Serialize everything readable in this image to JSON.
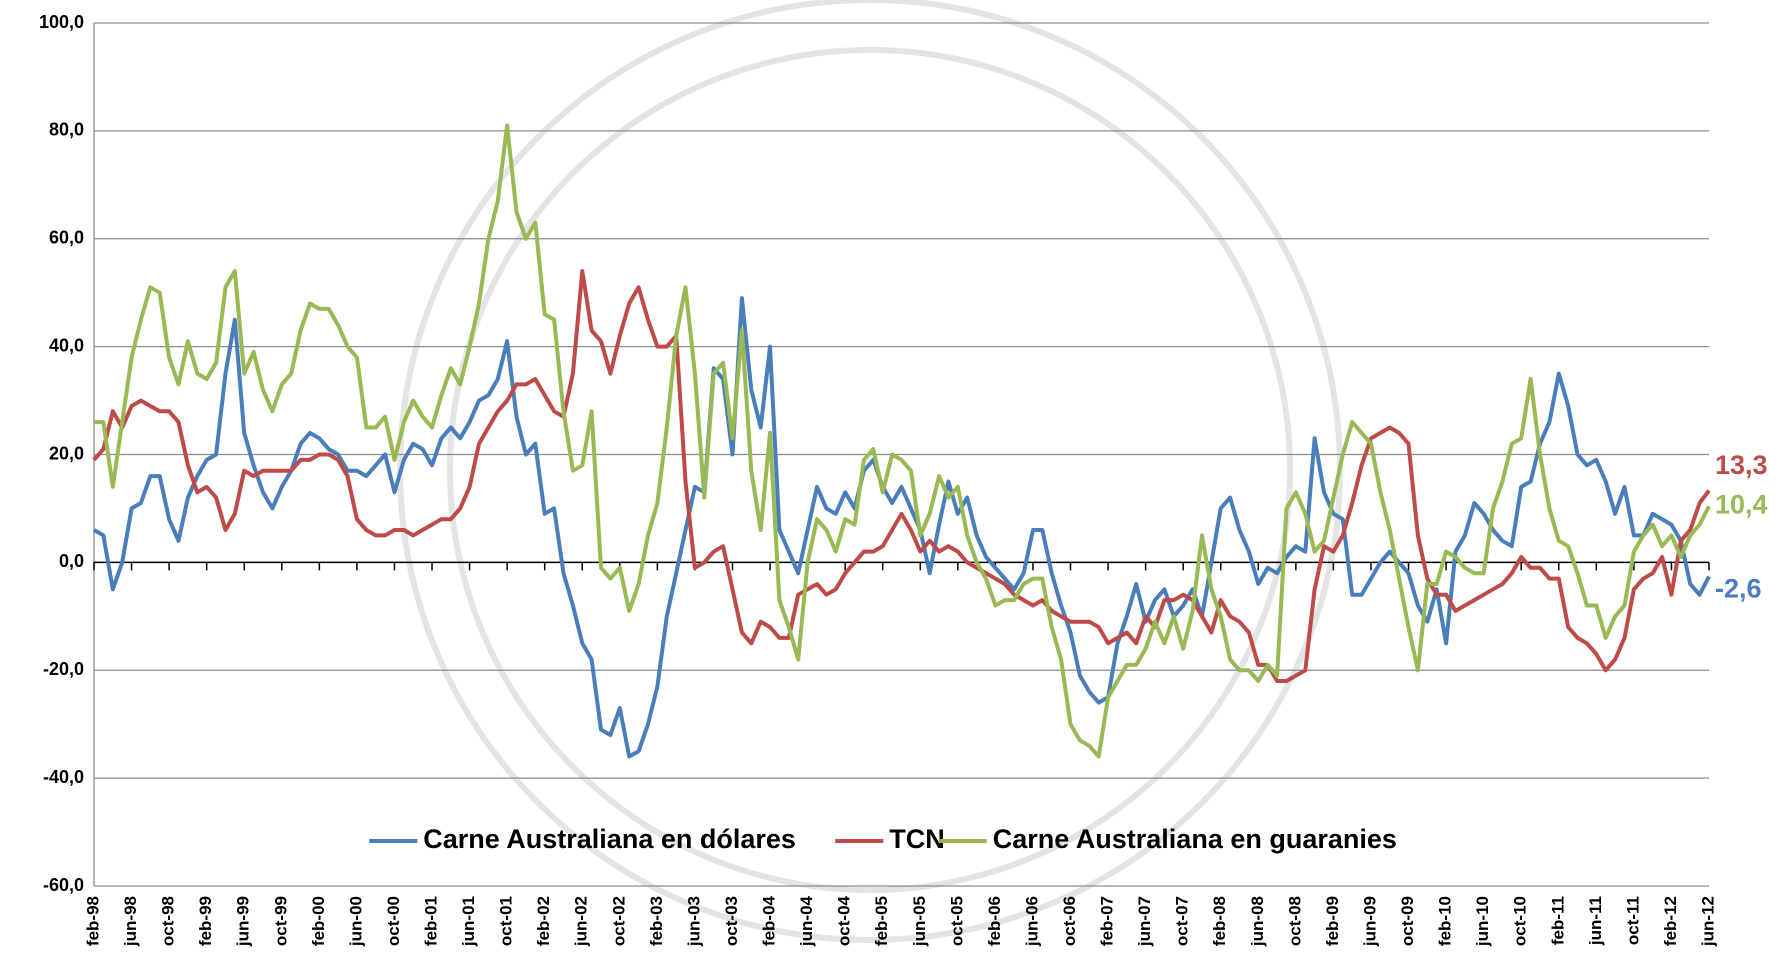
{
  "chart_data": {
    "type": "line",
    "categories": [
      "feb-98",
      null,
      null,
      null,
      "jun-98",
      null,
      null,
      null,
      "oct-98",
      null,
      null,
      null,
      "feb-99",
      null,
      null,
      null,
      "jun-99",
      null,
      null,
      null,
      "oct-99",
      null,
      null,
      null,
      "feb-00",
      null,
      null,
      null,
      "jun-00",
      null,
      null,
      null,
      "oct-00",
      null,
      null,
      null,
      "feb-01",
      null,
      null,
      null,
      "jun-01",
      null,
      null,
      null,
      "oct-01",
      null,
      null,
      null,
      "feb-02",
      null,
      null,
      null,
      "jun-02",
      null,
      null,
      null,
      "oct-02",
      null,
      null,
      null,
      "feb-03",
      null,
      null,
      null,
      "jun-03",
      null,
      null,
      null,
      "oct-03",
      null,
      null,
      null,
      "feb-04",
      null,
      null,
      null,
      "jun-04",
      null,
      null,
      null,
      "oct-04",
      null,
      null,
      null,
      "feb-05",
      null,
      null,
      null,
      "jun-05",
      null,
      null,
      null,
      "oct-05",
      null,
      null,
      null,
      "feb-06",
      null,
      null,
      null,
      "jun-06",
      null,
      null,
      null,
      "oct-06",
      null,
      null,
      null,
      "feb-07",
      null,
      null,
      null,
      "jun-07",
      null,
      null,
      null,
      "oct-07",
      null,
      null,
      null,
      "feb-08",
      null,
      null,
      null,
      "jun-08",
      null,
      null,
      null,
      "oct-08",
      null,
      null,
      null,
      "feb-09",
      null,
      null,
      null,
      "jun-09",
      null,
      null,
      null,
      "oct-09",
      null,
      null,
      null,
      "feb-10",
      null,
      null,
      null,
      "jun-10",
      null,
      null,
      null,
      "oct-10",
      null,
      null,
      null,
      "feb-11",
      null,
      null,
      null,
      "jun-11",
      null,
      null,
      null,
      "oct-11",
      null,
      null,
      null,
      "feb-12",
      null,
      null,
      null,
      "jun-12"
    ],
    "series": [
      {
        "name": "Carne Australiana en dólares",
        "color": "#4a7ebb",
        "values": [
          6,
          5,
          -5,
          0,
          10,
          11,
          16,
          16,
          8,
          4,
          12,
          16,
          19,
          20,
          35,
          45,
          24,
          18,
          13,
          10,
          14,
          17,
          22,
          24,
          23,
          21,
          20,
          17,
          17,
          16,
          18,
          20,
          13,
          19,
          22,
          21,
          18,
          23,
          25,
          23,
          26,
          30,
          31,
          34,
          41,
          27,
          20,
          22,
          9,
          10,
          -2,
          -8,
          -15,
          -18,
          -31,
          -32,
          -27,
          -36,
          -35,
          -30,
          -23,
          -10,
          -2,
          6,
          14,
          13,
          36,
          34,
          20,
          49,
          32,
          25,
          40,
          6,
          2,
          -2,
          6,
          14,
          10,
          9,
          13,
          10,
          17,
          19,
          14,
          11,
          14,
          10,
          6,
          -2,
          7,
          15,
          9,
          12,
          5,
          1,
          -1,
          -3,
          -5,
          -2,
          6,
          6,
          -2,
          -8,
          -13,
          -21,
          -24,
          -26,
          -25,
          -15,
          -10,
          -4,
          -11,
          -7,
          -5,
          -10,
          -8,
          -5,
          -10,
          0,
          10,
          12,
          6,
          2,
          -4,
          -1,
          -2,
          1,
          3,
          2,
          23,
          13,
          9,
          8,
          -6,
          -6,
          -3,
          0,
          2,
          0,
          -2,
          -8,
          -11,
          -5,
          -15,
          2,
          5,
          11,
          9,
          6,
          4,
          3,
          14,
          15,
          22,
          26,
          35,
          29,
          20,
          18,
          19,
          15,
          9,
          14,
          5,
          5,
          9,
          8,
          7,
          4,
          -4,
          -6,
          -2.6
        ]
      },
      {
        "name": "TCN",
        "color": "#be4b48",
        "values": [
          19,
          21,
          28,
          25,
          29,
          30,
          29,
          28,
          28,
          26,
          18,
          13,
          14,
          12,
          6,
          9,
          17,
          16,
          17,
          17,
          17,
          17,
          19,
          19,
          20,
          20,
          19,
          16,
          8,
          6,
          5,
          5,
          6,
          6,
          5,
          6,
          7,
          8,
          8,
          10,
          14,
          22,
          25,
          28,
          30,
          33,
          33,
          34,
          31,
          28,
          27,
          35,
          54,
          43,
          41,
          35,
          42,
          48,
          51,
          45,
          40,
          40,
          42,
          15,
          -1,
          0,
          2,
          3,
          -5,
          -13,
          -15,
          -11,
          -12,
          -14,
          -14,
          -6,
          -5,
          -4,
          -6,
          -5,
          -2,
          0,
          2,
          2,
          3,
          6,
          9,
          6,
          2,
          4,
          2,
          3,
          2,
          0,
          -1,
          -2,
          -3,
          -4,
          -6,
          -7,
          -8,
          -7,
          -9,
          -10,
          -11,
          -11,
          -11,
          -12,
          -15,
          -14,
          -13,
          -15,
          -10,
          -12,
          -7,
          -7,
          -6,
          -7,
          -10,
          -13,
          -7,
          -10,
          -11,
          -13,
          -19,
          -19,
          -22,
          -22,
          -21,
          -20,
          -5,
          3,
          2,
          5,
          11,
          18,
          23,
          24,
          25,
          24,
          22,
          5,
          -3,
          -6,
          -6,
          -9,
          -8,
          -7,
          -6,
          -5,
          -4,
          -2,
          1,
          -1,
          -1,
          -3,
          -3,
          -12,
          -14,
          -15,
          -17,
          -20,
          -18,
          -14,
          -5,
          -3,
          -2,
          1,
          -6,
          4,
          6,
          11,
          13.3
        ]
      },
      {
        "name": "Carne Australiana en guaranies",
        "color": "#98b954",
        "values": [
          26,
          26,
          14,
          26,
          38,
          45,
          51,
          50,
          38,
          33,
          41,
          35,
          34,
          37,
          51,
          54,
          35,
          39,
          32,
          28,
          33,
          35,
          43,
          48,
          47,
          47,
          44,
          40,
          38,
          25,
          25,
          27,
          19,
          26,
          30,
          27,
          25,
          31,
          36,
          33,
          40,
          48,
          60,
          67,
          81,
          65,
          60,
          63,
          46,
          45,
          28,
          17,
          18,
          28,
          -1,
          -3,
          -1,
          -9,
          -4,
          5,
          11,
          25,
          42,
          51,
          35,
          12,
          35,
          37,
          23,
          43,
          17,
          6,
          24,
          -7,
          -12,
          -18,
          0,
          8,
          6,
          2,
          8,
          7,
          19,
          21,
          13,
          20,
          19,
          17,
          5,
          9,
          16,
          12,
          14,
          5,
          0,
          -3,
          -8,
          -7,
          -7,
          -4,
          -3,
          -3,
          -12,
          -18,
          -30,
          -33,
          -34,
          -36,
          -25,
          -22,
          -19,
          -19,
          -16,
          -11,
          -15,
          -10,
          -16,
          -9,
          5,
          -5,
          -10,
          -18,
          -20,
          -20,
          -22,
          -19,
          -21,
          10,
          13,
          9,
          2,
          4,
          12,
          20,
          26,
          24,
          22,
          13,
          6,
          -3,
          -12,
          -20,
          -4,
          -4,
          2,
          1,
          -1,
          -2,
          -2,
          10,
          15,
          22,
          23,
          34,
          20,
          10,
          4,
          3,
          -2,
          -8,
          -8,
          -14,
          -10,
          -8,
          2,
          5,
          7,
          3,
          5,
          1,
          5,
          7,
          10.4
        ]
      }
    ],
    "annotations": [
      {
        "text": "13,3",
        "value": 13.3,
        "color": "#be4b48"
      },
      {
        "text": "10,4",
        "value": 10.4,
        "color": "#98b954"
      },
      {
        "text": "-2,6",
        "value": -2.6,
        "color": "#4a7ebb"
      }
    ],
    "ylim": [
      -60,
      100
    ],
    "yticks": [
      {
        "value": -60,
        "label": "-60,0"
      },
      {
        "value": -40,
        "label": "-40,0"
      },
      {
        "value": -20,
        "label": "-20,0"
      },
      {
        "value": 0,
        "label": "0,0"
      },
      {
        "value": 20,
        "label": "20,0"
      },
      {
        "value": 40,
        "label": "40,0"
      },
      {
        "value": 60,
        "label": "60,0"
      },
      {
        "value": 80,
        "label": "80,0"
      },
      {
        "value": 100,
        "label": "100,0"
      }
    ],
    "grid": true,
    "legend": "bottom"
  }
}
